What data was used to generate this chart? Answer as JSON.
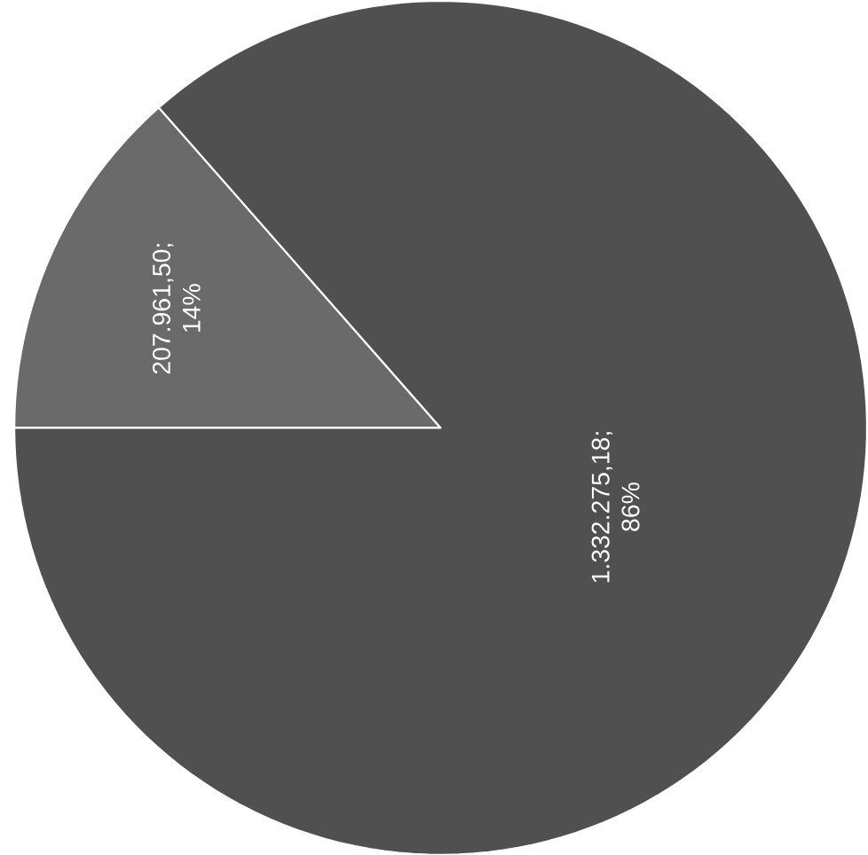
{
  "chart_data": {
    "type": "pie",
    "categories": [
      null,
      null
    ],
    "values": [
      207961.5,
      1332275.18
    ],
    "colors": [
      "#6a6a6a",
      "#505050"
    ],
    "value_labels": [
      "207.961,50; 14%",
      "1.332.275,18; 86%"
    ]
  }
}
